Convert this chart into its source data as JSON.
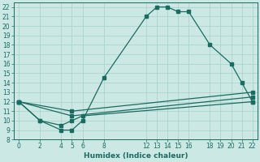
{
  "xlabel": "Humidex (Indice chaleur)",
  "xlim": [
    -0.5,
    22.5
  ],
  "ylim": [
    8,
    22.5
  ],
  "yticks": [
    8,
    9,
    10,
    11,
    12,
    13,
    14,
    15,
    16,
    17,
    18,
    19,
    20,
    21,
    22
  ],
  "xticks": [
    0,
    2,
    4,
    5,
    6,
    8,
    12,
    13,
    14,
    15,
    16,
    18,
    19,
    20,
    21,
    22
  ],
  "bg_color": "#cce8e4",
  "grid_color": "#a8cfc8",
  "line_color": "#1a6b60",
  "line1_x": [
    0,
    2,
    4,
    5,
    6,
    8,
    12,
    13,
    14,
    15,
    16,
    18,
    20,
    21,
    22
  ],
  "line1_y": [
    12,
    10,
    9,
    9,
    10,
    14.5,
    21,
    22,
    22,
    21.5,
    21.5,
    18,
    16,
    14,
    12
  ],
  "line2_x": [
    0,
    2,
    4,
    5,
    6,
    22
  ],
  "line2_y": [
    12,
    10,
    9.5,
    10,
    10.5,
    12
  ],
  "line3_x": [
    0,
    5,
    22
  ],
  "line3_y": [
    12,
    10.5,
    12.5
  ],
  "line4_x": [
    0,
    5,
    22
  ],
  "line4_y": [
    12,
    11.0,
    13.0
  ]
}
